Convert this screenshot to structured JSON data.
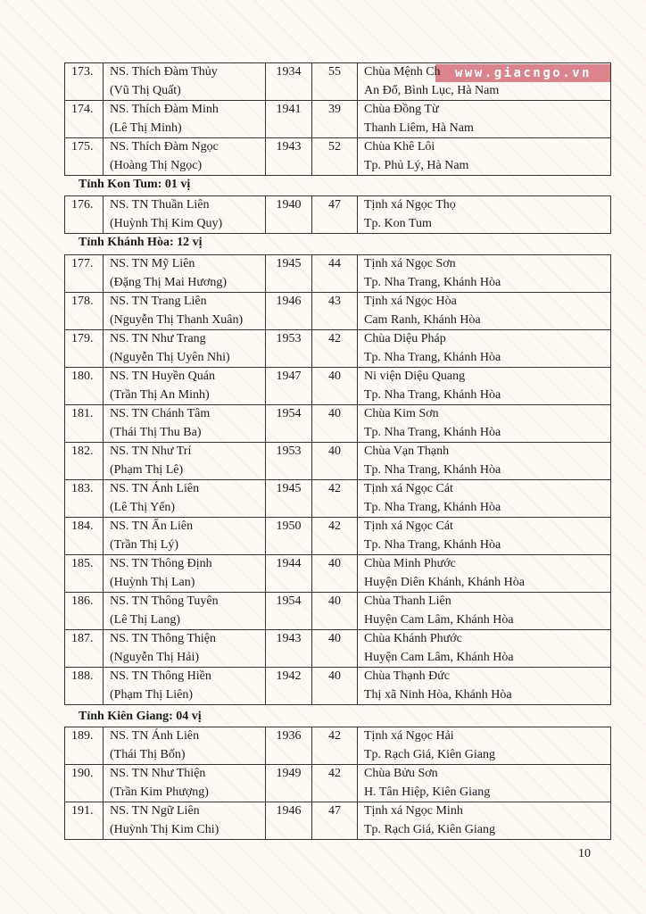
{
  "watermark": "www.giacngo.vn",
  "page_number": "10",
  "sections": [
    {
      "title": "",
      "rows": [
        {
          "num": "173.",
          "name": "NS. Thích Đàm Thủy",
          "birth_name": "(Vũ Thị Quất)",
          "year": "1934",
          "age": "55",
          "place": "Chùa Mệnh Ch",
          "location": "An Đổ, Bình Lục, Hà Nam"
        },
        {
          "num": "174.",
          "name": "NS. Thích Đàm Minh",
          "birth_name": "(Lê Thị Minh)",
          "year": "1941",
          "age": "39",
          "place": "Chùa Đồng Từ",
          "location": "Thanh Liêm, Hà Nam"
        },
        {
          "num": "175.",
          "name": "NS. Thích Đàm Ngọc",
          "birth_name": "(Hoàng Thị Ngọc)",
          "year": "1943",
          "age": "52",
          "place": "Chùa Khê Lôi",
          "location": "Tp. Phủ Lý, Hà Nam"
        }
      ]
    },
    {
      "title": "Tỉnh Kon Tum: 01 vị",
      "rows": [
        {
          "num": "176.",
          "name": "NS. TN Thuần Liên",
          "birth_name": "(Huỳnh Thị Kim Quy)",
          "year": "1940",
          "age": "47",
          "place": "Tịnh xá Ngọc Thọ",
          "location": "Tp. Kon Tum"
        }
      ]
    },
    {
      "title": "Tỉnh Khánh Hòa: 12 vị",
      "rows": [
        {
          "num": "177.",
          "name": "NS. TN Mỹ Liên",
          "birth_name": "(Đặng Thị Mai Hương)",
          "year": "1945",
          "age": "44",
          "place": "Tịnh xá Ngọc Sơn",
          "location": "Tp. Nha Trang, Khánh Hòa"
        },
        {
          "num": "178.",
          "name": "NS. TN Trang Liên",
          "birth_name": "(Nguyễn Thị Thanh Xuân)",
          "year": "1946",
          "age": "43",
          "place": "Tịnh xá Ngọc Hòa",
          "location": "Cam Ranh, Khánh Hòa"
        },
        {
          "num": "179.",
          "name": "NS. TN Như Trang",
          "birth_name": "(Nguyễn Thị Uyên Nhi)",
          "year": "1953",
          "age": "42",
          "place": "Chùa Diệu Pháp",
          "location": "Tp. Nha Trang, Khánh Hòa"
        },
        {
          "num": "180.",
          "name": "NS. TN Huyền Quán",
          "birth_name": "(Trần Thị An Minh)",
          "year": "1947",
          "age": "40",
          "place": "Ni viện Diệu Quang",
          "location": "Tp. Nha Trang, Khánh Hòa"
        },
        {
          "num": "181.",
          "name": "NS. TN Chánh Tâm",
          "birth_name": "(Thái Thị Thu Ba)",
          "year": "1954",
          "age": "40",
          "place": "Chùa Kim Sơn",
          "location": "Tp. Nha Trang, Khánh Hòa"
        },
        {
          "num": "182.",
          "name": "NS. TN Như Trí",
          "birth_name": "(Phạm Thị Lê)",
          "year": "1953",
          "age": "40",
          "place": "Chùa Vạn Thạnh",
          "location": "Tp. Nha Trang, Khánh Hòa"
        },
        {
          "num": "183.",
          "name": "NS. TN Ánh Liên",
          "birth_name": "(Lê Thị Yến)",
          "year": "1945",
          "age": "42",
          "place": "Tịnh xá Ngọc Cát",
          "location": "Tp. Nha Trang, Khánh Hòa"
        },
        {
          "num": "184.",
          "name": "NS. TN Ấn Liên",
          "birth_name": "(Trần Thị Lý)",
          "year": "1950",
          "age": "42",
          "place": "Tịnh xá Ngọc Cát",
          "location": "Tp. Nha Trang, Khánh Hòa"
        },
        {
          "num": "185.",
          "name": "NS. TN Thông Định",
          "birth_name": "(Huỳnh Thị Lan)",
          "year": "1944",
          "age": "40",
          "place": "Chùa Minh Phước",
          "location": "Huyện Diên Khánh, Khánh Hòa"
        },
        {
          "num": "186.",
          "name": "NS. TN Thông Tuyên",
          "birth_name": "(Lê Thị Lang)",
          "year": "1954",
          "age": "40",
          "place": "Chùa Thanh Liên",
          "location": "Huyện Cam Lâm, Khánh Hòa"
        },
        {
          "num": "187.",
          "name": "NS. TN Thông Thiện",
          "birth_name": "(Nguyễn Thị Hải)",
          "year": "1943",
          "age": "40",
          "place": "Chùa Khánh Phước",
          "location": "Huyện Cam Lâm, Khánh Hòa"
        },
        {
          "num": "188.",
          "name": "NS. TN Thông Hiền",
          "birth_name": "(Phạm Thị Liên)",
          "year": "1942",
          "age": "40",
          "place": "Chùa Thạnh Đức",
          "location": "Thị xã Ninh Hòa, Khánh Hòa"
        }
      ]
    },
    {
      "title": "Tỉnh Kiên Giang: 04 vị",
      "rows": [
        {
          "num": "189.",
          "name": "NS. TN Ánh Liên",
          "birth_name": "(Thái Thị Bốn)",
          "year": "1936",
          "age": "42",
          "place": "Tịnh xá Ngọc Hải",
          "location": "Tp. Rạch Giá, Kiên Giang"
        },
        {
          "num": "190.",
          "name": "NS. TN Như Thiện",
          "birth_name": "(Trần Kim Phượng)",
          "year": "1949",
          "age": "42",
          "place": "Chùa Bửu Sơn",
          "location": "H. Tân Hiệp, Kiên Giang"
        },
        {
          "num": "191.",
          "name": "NS. TN Ngữ Liên",
          "birth_name": "(Huỳnh Thị Kim Chi)",
          "year": "1946",
          "age": "47",
          "place": "Tịnh xá Ngọc Minh",
          "location": "Tp. Rạch Giá, Kiên Giang"
        }
      ]
    }
  ]
}
